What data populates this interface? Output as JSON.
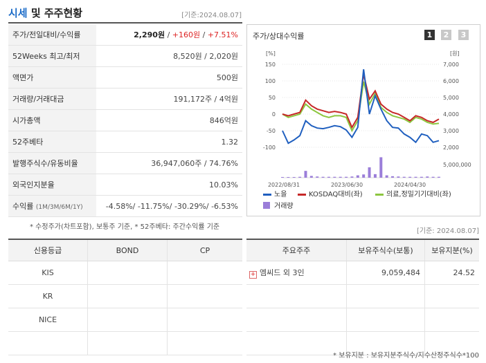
{
  "header": {
    "title_accent": "시세",
    "title_rest": " 및 주주현황",
    "date": "[기준:2024.08.07]"
  },
  "market": {
    "rows": [
      {
        "label": "주가/전일대비/수익률",
        "v1": "2,290원",
        "sep1": " / ",
        "v2": "+160원",
        "sep2": " / ",
        "v3": "+7.51%"
      },
      {
        "label": "52Weeks 최고/최저",
        "value": "8,520원 / 2,020원"
      },
      {
        "label": "액면가",
        "value": "500원"
      },
      {
        "label": "거래량/거래대금",
        "value": "191,172주 / 4억원"
      },
      {
        "label": "시가총액",
        "value": "846억원"
      },
      {
        "label": "52주베타",
        "value": "1.32"
      },
      {
        "label": "발행주식수/유동비율",
        "value": "36,947,060주 / 74.76%"
      },
      {
        "label": "외국인지분율",
        "value": "10.03%"
      },
      {
        "label": "수익률",
        "label_sub": "(1M/3M/6M/1Y)",
        "value": "-4.58%/ -11.75%/ -30.29%/ -6.53%"
      }
    ],
    "note": "* 수정주가(차트포함), 보통주 기준, * 52주베타: 주간수익률 기준"
  },
  "chart_panel": {
    "title": "주가/상대수익률",
    "pages": [
      "1",
      "2",
      "3"
    ],
    "active_page": 1
  },
  "chart_data": {
    "type": "line",
    "left_unit": "[%]",
    "right_unit": "[원]",
    "y_left_ticks": [
      "150",
      "100",
      "50",
      "0",
      "-50",
      "-100"
    ],
    "y_right_ticks": [
      "7,000",
      "6,000",
      "5,000",
      "4,000",
      "3,000",
      "2,000"
    ],
    "volume_tick": "5,000,000",
    "x_labels": [
      "2022/08/31",
      "2023/06/30",
      "2024/04/30"
    ],
    "ylim_left": [
      -100,
      150
    ],
    "series": [
      {
        "name": "노을",
        "color": "#1f5fbf",
        "values": [
          -50,
          -88,
          -78,
          -65,
          -20,
          -35,
          -42,
          -44,
          -40,
          -35,
          -38,
          -48,
          -70,
          -40,
          135,
          0,
          55,
          15,
          -20,
          -40,
          -42,
          -60,
          -70,
          -85,
          -60,
          -65,
          -85,
          -80
        ]
      },
      {
        "name": "KOSDAQ대비(좌)",
        "color": "#c62828",
        "values": [
          0,
          -5,
          0,
          5,
          42,
          25,
          15,
          10,
          5,
          8,
          5,
          0,
          -40,
          -10,
          120,
          45,
          70,
          30,
          15,
          5,
          0,
          -10,
          -20,
          -5,
          -10,
          -20,
          -25,
          -15
        ]
      },
      {
        "name": "의료,정밀기기대비(좌)",
        "color": "#8cc63f",
        "values": [
          0,
          -10,
          -5,
          0,
          30,
          15,
          5,
          -5,
          -10,
          -5,
          -5,
          -10,
          -50,
          -20,
          98,
          30,
          62,
          20,
          5,
          -5,
          -10,
          -15,
          -25,
          -10,
          -15,
          -25,
          -30,
          -28
        ]
      }
    ],
    "volume": {
      "name": "거래량",
      "color": "#9b7ed9",
      "values": [
        0.2,
        0.2,
        0.2,
        0.3,
        2.3,
        0.6,
        0.4,
        0.3,
        0.3,
        0.3,
        0.3,
        0.3,
        0.4,
        0.8,
        1.1,
        3.5,
        1.2,
        6.9,
        0.8,
        0.5,
        0.4,
        0.3,
        0.3,
        0.3,
        0.3,
        0.4,
        0.3,
        0.3
      ]
    }
  },
  "credit": {
    "date": "[기준: 2024.08.07]",
    "headers": [
      "신용등급",
      "BOND",
      "CP"
    ],
    "rows": [
      {
        "agency": "KIS",
        "bond": "",
        "cp": ""
      },
      {
        "agency": "KR",
        "bond": "",
        "cp": ""
      },
      {
        "agency": "NICE",
        "bond": "",
        "cp": ""
      },
      {
        "agency": "",
        "bond": "",
        "cp": ""
      }
    ]
  },
  "holders": {
    "headers": [
      "주요주주",
      "보유주식수(보통)",
      "보유지분(%)"
    ],
    "rows": [
      {
        "name": "엠씨드 외 3인",
        "shares": "9,059,484",
        "pct": "24.52"
      },
      {
        "name": "",
        "shares": "",
        "pct": ""
      },
      {
        "name": "",
        "shares": "",
        "pct": ""
      },
      {
        "name": "",
        "shares": "",
        "pct": ""
      }
    ],
    "footnote": "* 보유지분 : 보유지분주식수/지수산정주식수*100"
  }
}
